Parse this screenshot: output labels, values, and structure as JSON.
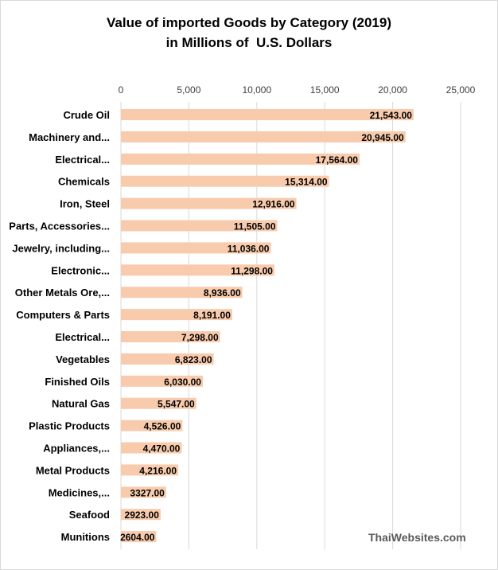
{
  "chart_data": {
    "type": "bar",
    "orientation": "horizontal",
    "title": [
      "Value of imported Goods by Category (2019)",
      "in Millions of  U.S. Dollars"
    ],
    "xlim": [
      0,
      25000
    ],
    "xticks": [
      "0",
      "5,000",
      "10,000",
      "15,000",
      "20,000",
      "25,000"
    ],
    "xtick_values": [
      0,
      5000,
      10000,
      15000,
      20000,
      25000
    ],
    "grid": true,
    "bar_color": "#F8CBAD",
    "categories": [
      "Crude Oil",
      "Machinery and...",
      "Electrical...",
      "Chemicals",
      "Iron, Steel",
      "Parts, Accessories...",
      "Jewelry, including...",
      "Electronic...",
      "Other Metals Ore,...",
      "Computers & Parts",
      "Electrical...",
      "Vegetables",
      "Finished Oils",
      "Natural Gas",
      "Plastic Products",
      "Appliances,...",
      "Metal Products",
      "Medicines,...",
      "Seafood",
      "Munitions"
    ],
    "values": [
      21543,
      20945,
      17564,
      15314,
      12916,
      11505,
      11036,
      11298,
      8936,
      8191,
      7298,
      6823,
      6030,
      5547,
      4526,
      4470,
      4216,
      3327,
      2923,
      2604
    ],
    "data_labels": [
      "21,543.00",
      "20,945.00",
      "17,564.00",
      "15,314.00",
      "12,916.00",
      "11,505.00",
      "11,036.00",
      "11,298.00",
      "8,936.00",
      "8,191.00",
      "7,298.00",
      "6,823.00",
      "6,030.00",
      "5,547.00",
      "4,526.00",
      "4,470.00",
      "4,216.00",
      "3327.00",
      "2923.00",
      "2604.00"
    ]
  },
  "watermark": "ThaiWebsites.com"
}
